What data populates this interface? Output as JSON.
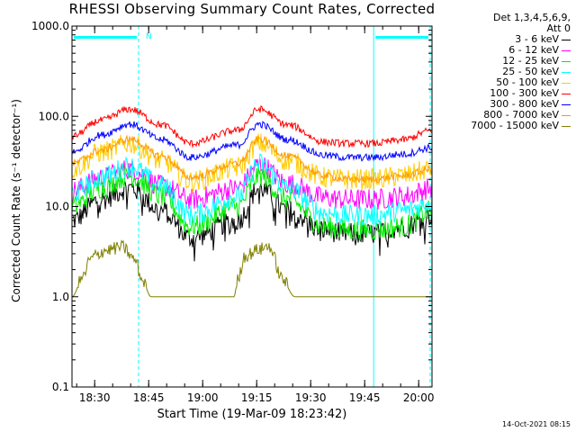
{
  "chart_data": {
    "type": "line",
    "title": "RHESSI Observing Summary Count Rates, Corrected",
    "xlabel": "Start Time (19-Mar-09 18:23:42)",
    "ylabel": "Corrected Count Rate (s⁻¹ detector⁻¹)",
    "yscale": "log",
    "ylim": [
      0.1,
      1000
    ],
    "xlim_minutes": [
      0,
      100
    ],
    "yticks": [
      "1000.0",
      "100.0",
      "10.0",
      "1.0",
      "0.1"
    ],
    "xticks": [
      {
        "t": 6.3,
        "label": "18:30"
      },
      {
        "t": 21.3,
        "label": "18:45"
      },
      {
        "t": 36.3,
        "label": "19:00"
      },
      {
        "t": 51.3,
        "label": "19:15"
      },
      {
        "t": 66.3,
        "label": "19:30"
      },
      {
        "t": 81.3,
        "label": "19:45"
      },
      {
        "t": 96.3,
        "label": "20:00"
      }
    ],
    "legend_position": "right",
    "legend_header": [
      "Det 1,3,4,5,6,9,",
      "Att 0"
    ],
    "series": [
      {
        "name": "3 - 6 keV",
        "color": "#000000",
        "x": [
          0,
          8,
          16,
          25,
          33,
          46,
          52,
          60,
          70,
          76,
          84,
          92,
          100
        ],
        "y": [
          7,
          12,
          16,
          9,
          4.5,
          7,
          16,
          9,
          5.5,
          5,
          5,
          6,
          8
        ]
      },
      {
        "name": "6 - 12 keV",
        "color": "#ff00ff",
        "x": [
          0,
          8,
          16,
          25,
          33,
          46,
          52,
          60,
          70,
          76,
          84,
          92,
          100
        ],
        "y": [
          15,
          21,
          26,
          17,
          12,
          16,
          29,
          18,
          12.5,
          12,
          12,
          13,
          16
        ]
      },
      {
        "name": "12 - 25 keV",
        "color": "#00ee00",
        "x": [
          0,
          8,
          16,
          25,
          33,
          46,
          52,
          60,
          70,
          76,
          84,
          92,
          100
        ],
        "y": [
          10,
          16,
          22,
          13,
          6,
          10,
          22,
          12,
          6,
          5.5,
          5.5,
          6,
          9
        ]
      },
      {
        "name": "25 - 50 keV",
        "color": "#00ffff",
        "x": [
          0,
          8,
          16,
          25,
          33,
          46,
          52,
          60,
          70,
          76,
          84,
          92,
          100
        ],
        "y": [
          14,
          21,
          28,
          17,
          8,
          13,
          30,
          16,
          8.5,
          8,
          8,
          9,
          11
        ]
      },
      {
        "name": "50 - 100 keV",
        "color": "#ffcc00",
        "x": [
          0,
          8,
          16,
          25,
          33,
          46,
          52,
          60,
          70,
          76,
          84,
          92,
          100
        ],
        "y": [
          26,
          40,
          50,
          32,
          19,
          27,
          50,
          32,
          21,
          20,
          20,
          22,
          26
        ]
      },
      {
        "name": "100 - 300 keV",
        "color": "#ff0000",
        "x": [
          0,
          8,
          16,
          25,
          33,
          46,
          52,
          60,
          70,
          76,
          84,
          92,
          100
        ],
        "y": [
          60,
          90,
          120,
          80,
          50,
          70,
          120,
          80,
          52,
          50,
          50,
          55,
          70
        ]
      },
      {
        "name": "300 - 800 keV",
        "color": "#0000ff",
        "x": [
          0,
          8,
          16,
          25,
          33,
          46,
          52,
          60,
          70,
          76,
          84,
          92,
          100
        ],
        "y": [
          40,
          62,
          82,
          55,
          35,
          48,
          82,
          55,
          37,
          35,
          35,
          38,
          45
        ]
      },
      {
        "name": "800 - 7000 keV",
        "color": "#ff9900",
        "x": [
          0,
          8,
          16,
          25,
          33,
          46,
          52,
          60,
          70,
          76,
          84,
          92,
          100
        ],
        "y": [
          30,
          42,
          56,
          36,
          21,
          30,
          56,
          36,
          22,
          20,
          20,
          22,
          26
        ]
      },
      {
        "name": "7000 - 15000 keV",
        "color": "#808000",
        "x": [
          0,
          3,
          5,
          6.5,
          9,
          14,
          17.5,
          19.5,
          22,
          24,
          27,
          45,
          46,
          48,
          52,
          55,
          56,
          58,
          62,
          64,
          96,
          98,
          100
        ],
        "y": [
          1,
          1.6,
          2.5,
          2.8,
          3.2,
          3.5,
          2.5,
          1.5,
          1,
          1,
          1,
          1,
          1.5,
          2.8,
          3.3,
          3.6,
          2.7,
          1.6,
          1,
          1,
          1,
          1,
          1
        ]
      }
    ],
    "annotations": [
      {
        "text": "N",
        "t": 20.5,
        "color": "#00ffff"
      }
    ],
    "cyan_bars": [
      [
        0,
        18.5
      ],
      [
        83.8,
        99.5
      ]
    ],
    "cyan_solid_lines": [
      0,
      83.8
    ],
    "cyan_dashed_lines": [
      18.5,
      99.5
    ],
    "background_color": "#ffffff"
  },
  "footer": {
    "timestamp": "14-Oct-2021 08:15"
  }
}
